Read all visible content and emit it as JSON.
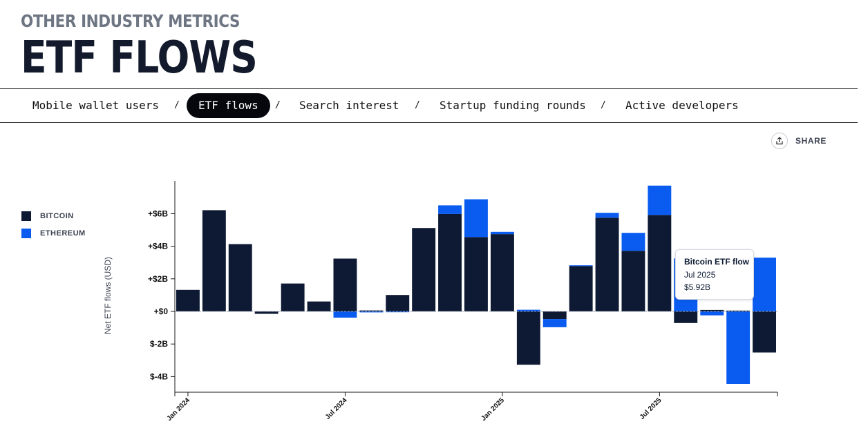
{
  "header": {
    "eyebrow": "OTHER INDUSTRY METRICS",
    "title": "ETF FLOWS"
  },
  "tabs": [
    {
      "label": "Mobile wallet users",
      "active": false
    },
    {
      "label": "ETF flows",
      "active": true
    },
    {
      "label": "Search interest",
      "active": false
    },
    {
      "label": "Startup funding rounds",
      "active": false
    },
    {
      "label": "Active developers",
      "active": false
    }
  ],
  "tab_separator": "/",
  "share": {
    "label": "SHARE",
    "icon": "share-icon"
  },
  "colors": {
    "bitcoin": "#0e1a33",
    "ethereum": "#0a5cf0",
    "axis": "#1a1a1a",
    "zero_line": "#9aa3b5"
  },
  "tooltip": {
    "title": "Bitcoin ETF flow",
    "date": "Jul 2025",
    "value": "$5.92B"
  },
  "chart_data": {
    "type": "bar",
    "stacked": true,
    "ylabel": "Net ETF flows (USD)",
    "xlabel": "",
    "ylim": [
      -5,
      7
    ],
    "yticks": [
      -4,
      -2,
      0,
      2,
      4,
      6
    ],
    "ytick_labels": [
      "$-4B",
      "$-2B",
      "+$0",
      "+$2B",
      "+$4B",
      "+$6B"
    ],
    "categories": [
      "Jan 2024",
      "Feb 2024",
      "Mar 2024",
      "Apr 2024",
      "May 2024",
      "Jun 2024",
      "Jul 2024",
      "Aug 2024",
      "Sep 2024",
      "Oct 2024",
      "Nov 2024",
      "Dec 2024",
      "Jan 2025",
      "Feb 2025",
      "Mar 2025",
      "Apr 2025",
      "May 2025",
      "Jun 2025",
      "Jul 2025",
      "Aug 2025",
      "Sep 2025",
      "Oct 2025",
      "Nov 2025"
    ],
    "xtick_labels": [
      {
        "category": "Jan 2024",
        "label": "Jan 2024"
      },
      {
        "category": "Jul 2024",
        "label": "Jul 2024"
      },
      {
        "category": "Jan 2025",
        "label": "Jan 2025"
      },
      {
        "category": "Jul 2025",
        "label": "Jul 2025"
      }
    ],
    "legend": {
      "position": "left",
      "entries": [
        "BITCOIN",
        "ETHEREUM"
      ]
    },
    "grid": false,
    "series": [
      {
        "name": "BITCOIN",
        "values": [
          1.32,
          6.21,
          4.13,
          -0.15,
          1.71,
          0.61,
          3.24,
          0.06,
          1.01,
          5.12,
          5.98,
          4.56,
          4.74,
          -3.27,
          -0.47,
          2.78,
          5.75,
          3.72,
          5.92,
          -0.71,
          0.09,
          0.05,
          -2.52
        ]
      },
      {
        "name": "ETHEREUM",
        "values": [
          0,
          0,
          0,
          0,
          0,
          0,
          -0.38,
          -0.06,
          -0.05,
          0,
          0.53,
          2.32,
          0.14,
          0.1,
          -0.5,
          0.05,
          0.3,
          1.1,
          1.8,
          3.25,
          -0.24,
          -4.45,
          3.3
        ]
      }
    ]
  }
}
